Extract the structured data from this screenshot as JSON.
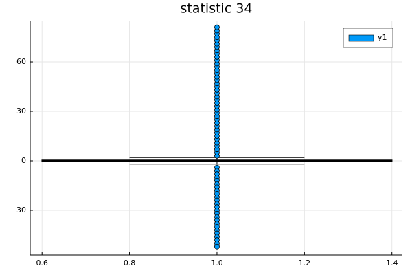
{
  "chart_data": {
    "type": "box",
    "title": "statistic 34",
    "xlim": [
      0.573,
      1.424
    ],
    "ylim": [
      -57.1,
      84.6
    ],
    "xticks": [
      0.6,
      0.8,
      {
        "value": 1,
        "label": "1.0"
      },
      1.2,
      1.4
    ],
    "yticks": [
      {
        "value": -30,
        "label": "−30"
      },
      0,
      30,
      60
    ],
    "grid": true,
    "legend": "top-right",
    "series": [
      {
        "name": "y1",
        "color": "#009af9",
        "x": 1,
        "q1": -0.4,
        "median": 0,
        "q3": 0.4,
        "whisker_low": -2,
        "whisker_high": 2,
        "outliers": [
          3,
          5,
          7,
          9,
          11,
          13,
          15,
          17,
          19,
          21,
          23,
          25,
          27,
          29,
          31,
          33,
          35,
          37,
          39,
          41,
          43,
          45,
          47,
          49,
          51,
          53,
          55,
          57,
          59,
          61,
          63,
          65,
          67,
          69,
          71,
          73,
          75,
          77,
          79,
          81,
          -4,
          -6,
          -8,
          -10,
          -12,
          -14,
          -16,
          -18,
          -20,
          -22,
          -24,
          -26,
          -28,
          -30,
          -32,
          -34,
          -36,
          -38,
          -40,
          -42,
          -44,
          -46,
          -48,
          -50,
          -52
        ]
      }
    ]
  }
}
